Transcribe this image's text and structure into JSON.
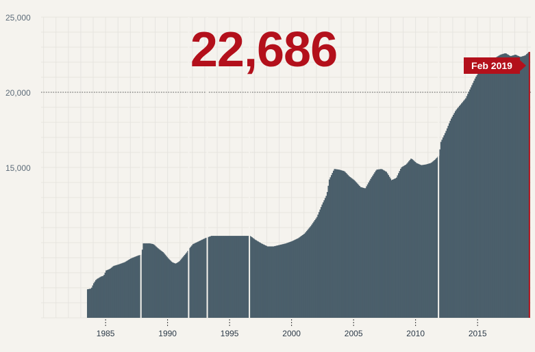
{
  "headline_value": "22,686",
  "current_label": "Feb 2019",
  "colors": {
    "background": "#f5f3ee",
    "bar": "#4b5f6b",
    "accent": "#b3101b",
    "grid": "#e6e4df"
  },
  "chart_data": {
    "type": "area",
    "title": "",
    "xlabel": "",
    "ylabel": "",
    "xlim": [
      1979.8,
      2019.3
    ],
    "ylim": [
      5000,
      25000
    ],
    "yticks": [
      {
        "value": 15000,
        "label": "15,000"
      },
      {
        "value": 20000,
        "label": "20,000"
      },
      {
        "value": 25000,
        "label": "25,000"
      }
    ],
    "xticks": [
      {
        "value": 1985,
        "label": "1985"
      },
      {
        "value": 1990,
        "label": "1990"
      },
      {
        "value": 1995,
        "label": "1995"
      },
      {
        "value": 2000,
        "label": "2000"
      },
      {
        "value": 2005,
        "label": "2005"
      },
      {
        "value": 2010,
        "label": "2010"
      },
      {
        "value": 2015,
        "label": "2015"
      }
    ],
    "reference_line": {
      "value": 20000,
      "style": "dotted"
    },
    "breaks": [
      1987.85,
      1991.7,
      1993.2,
      1996.6,
      2011.85
    ],
    "series": [
      {
        "points": [
          [
            1983.5,
            6900
          ],
          [
            1983.8,
            6950
          ],
          [
            1984.0,
            7300
          ],
          [
            1984.2,
            7550
          ],
          [
            1984.4,
            7650
          ],
          [
            1984.6,
            7750
          ],
          [
            1984.8,
            7800
          ],
          [
            1985.0,
            8150
          ],
          [
            1985.3,
            8250
          ],
          [
            1985.6,
            8450
          ],
          [
            1986.0,
            8550
          ],
          [
            1986.5,
            8700
          ],
          [
            1987.0,
            8950
          ],
          [
            1987.6,
            9150
          ],
          [
            1987.85,
            9200
          ],
          [
            1988.0,
            9950
          ],
          [
            1988.5,
            9950
          ],
          [
            1988.8,
            9900
          ],
          [
            1989.2,
            9600
          ],
          [
            1989.6,
            9350
          ],
          [
            1990.0,
            8950
          ],
          [
            1990.3,
            8700
          ],
          [
            1990.6,
            8600
          ],
          [
            1990.9,
            8750
          ],
          [
            1991.2,
            9050
          ],
          [
            1991.5,
            9350
          ],
          [
            1991.7,
            9600
          ],
          [
            1992.0,
            9900
          ],
          [
            1992.5,
            10100
          ],
          [
            1993.0,
            10300
          ],
          [
            1993.5,
            10450
          ],
          [
            1994.0,
            10450
          ],
          [
            1995.0,
            10450
          ],
          [
            1996.0,
            10450
          ],
          [
            1996.6,
            10450
          ],
          [
            1997.0,
            10200
          ],
          [
            1997.5,
            9950
          ],
          [
            1998.0,
            9750
          ],
          [
            1998.5,
            9750
          ],
          [
            1999.0,
            9850
          ],
          [
            1999.5,
            9950
          ],
          [
            2000.0,
            10100
          ],
          [
            2000.5,
            10300
          ],
          [
            2001.0,
            10600
          ],
          [
            2001.5,
            11100
          ],
          [
            2002.0,
            11700
          ],
          [
            2002.4,
            12500
          ],
          [
            2002.8,
            13200
          ],
          [
            2003.0,
            14200
          ],
          [
            2003.4,
            14900
          ],
          [
            2003.8,
            14850
          ],
          [
            2004.2,
            14750
          ],
          [
            2004.6,
            14400
          ],
          [
            2005.0,
            14150
          ],
          [
            2005.5,
            13700
          ],
          [
            2005.9,
            13600
          ],
          [
            2006.3,
            14200
          ],
          [
            2006.8,
            14850
          ],
          [
            2007.2,
            14900
          ],
          [
            2007.6,
            14700
          ],
          [
            2008.0,
            14150
          ],
          [
            2008.4,
            14300
          ],
          [
            2008.8,
            15000
          ],
          [
            2009.2,
            15200
          ],
          [
            2009.6,
            15600
          ],
          [
            2010.0,
            15300
          ],
          [
            2010.4,
            15150
          ],
          [
            2010.8,
            15200
          ],
          [
            2011.2,
            15300
          ],
          [
            2011.5,
            15500
          ],
          [
            2011.85,
            15800
          ],
          [
            2012.0,
            16700
          ],
          [
            2012.4,
            17400
          ],
          [
            2012.8,
            18200
          ],
          [
            2013.2,
            18800
          ],
          [
            2013.6,
            19200
          ],
          [
            2014.0,
            19600
          ],
          [
            2014.4,
            20300
          ],
          [
            2014.8,
            21000
          ],
          [
            2015.2,
            21500
          ],
          [
            2015.6,
            21800
          ],
          [
            2016.0,
            21900
          ],
          [
            2016.4,
            22300
          ],
          [
            2016.8,
            22500
          ],
          [
            2017.2,
            22600
          ],
          [
            2017.6,
            22400
          ],
          [
            2018.0,
            22500
          ],
          [
            2018.4,
            22350
          ],
          [
            2018.8,
            22450
          ],
          [
            2019.1,
            22686
          ]
        ]
      }
    ]
  }
}
